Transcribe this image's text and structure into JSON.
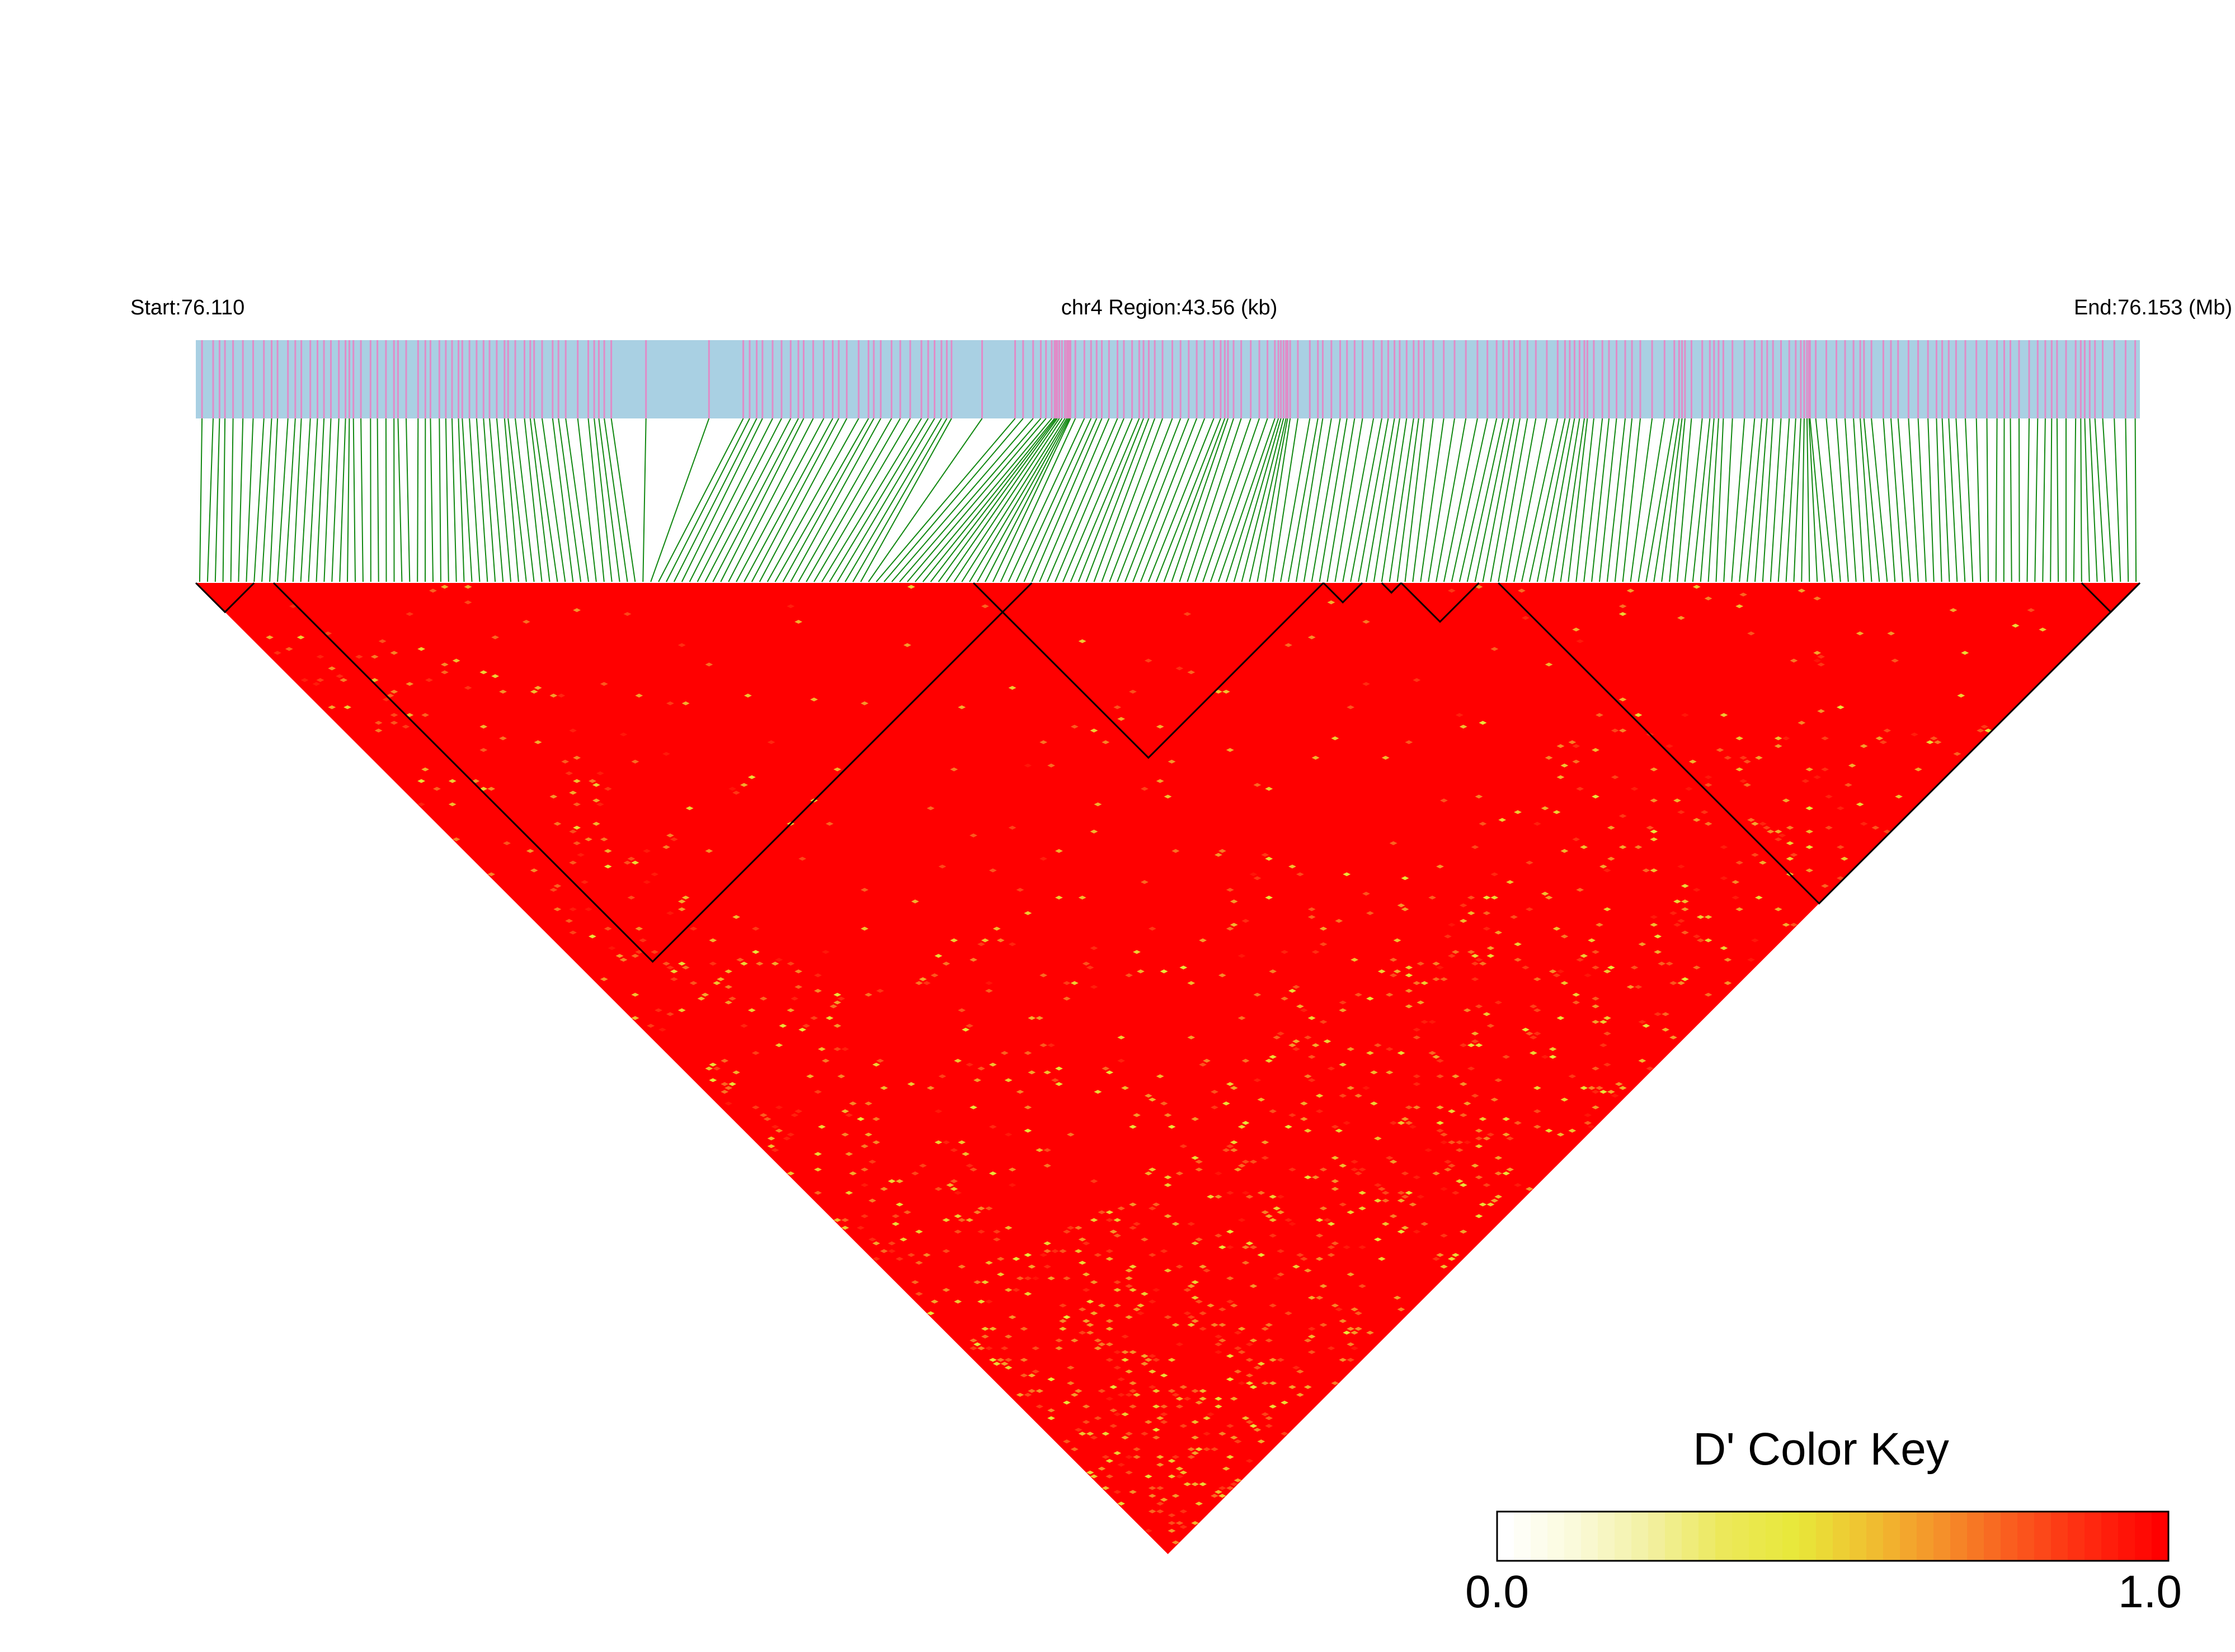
{
  "chart_data": {
    "type": "heatmap",
    "subtype": "LD block triangle (pairwise D')",
    "header": {
      "start_label": "Start:76.110",
      "region_label": "chr4 Region:43.56 (kb)",
      "end_label": "End:76.153 (Mb)"
    },
    "chromosome": "chr4",
    "region_start_mb": 76.11,
    "region_end_mb": 76.153,
    "region_length_kb": 43.56,
    "marker_count_approx": 250,
    "snp_track_colors": {
      "background": "#a9d0e3",
      "snp_tick": "#e08cc8",
      "connector": "#118811"
    },
    "heat_colors": {
      "low": "#ffffff",
      "mid": "#e8e84a",
      "high": "#ff0000"
    },
    "predominant_dprime": 1.0,
    "ld_blocks_fraction_of_region": [
      [
        0.0,
        0.03
      ],
      [
        0.04,
        0.43
      ],
      [
        0.4,
        0.58
      ],
      [
        0.58,
        0.6
      ],
      [
        0.61,
        0.62
      ],
      [
        0.62,
        0.66
      ],
      [
        0.67,
        1.0
      ],
      [
        0.97,
        1.0
      ]
    ],
    "color_key": {
      "title": "D' Color Key",
      "min_label": "0.0",
      "max_label": "1.0",
      "min": 0.0,
      "max": 1.0,
      "stops": [
        "#ffffff",
        "#fafad8",
        "#f2f0a0",
        "#ece85a",
        "#e8e83a",
        "#f0c030",
        "#f5902a",
        "#fa5a1e",
        "#ff2a10",
        "#ff0000"
      ]
    }
  }
}
